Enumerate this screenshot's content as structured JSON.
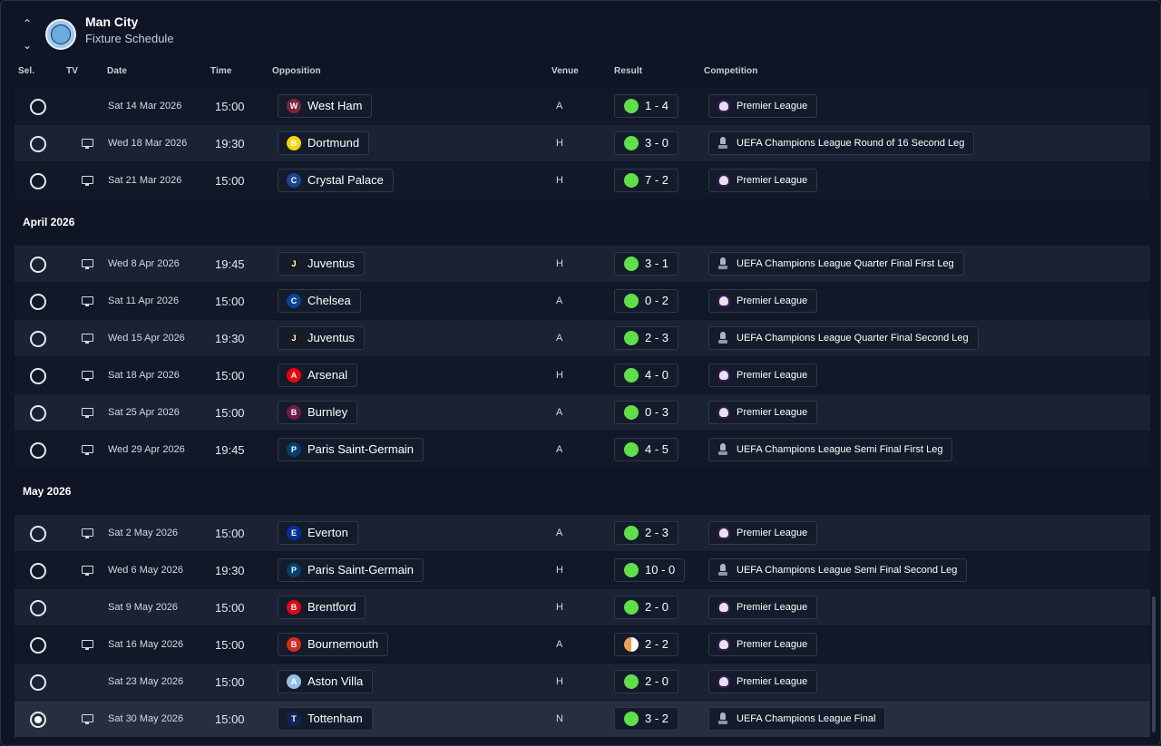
{
  "header": {
    "club_name": "Man City",
    "page_title": "Fixture Schedule",
    "club_color": "#6cabdd"
  },
  "columns": {
    "sel": "Sel.",
    "tv": "TV",
    "date": "Date",
    "time": "Time",
    "opposition": "Opposition",
    "venue": "Venue",
    "result": "Result",
    "competition": "Competition"
  },
  "months": [
    "April 2026",
    "May 2026"
  ],
  "rows": [
    {
      "date": "Sat 14 Mar 2026",
      "time": "15:00",
      "opp": "West Ham",
      "venue": "A",
      "result": "1 - 4",
      "comp": "Premier League",
      "tv": false,
      "outcome": "win",
      "comp_icon": "premier-league-icon",
      "badge_color": "#7a263a",
      "badge_text": "W"
    },
    {
      "date": "Wed 18 Mar 2026",
      "time": "19:30",
      "opp": "Dortmund",
      "venue": "H",
      "result": "3 - 0",
      "comp": "UEFA Champions League Round of 16  Second Leg",
      "tv": true,
      "outcome": "win",
      "comp_icon": "champions-league-trophy-icon",
      "badge_color": "#f5d50a",
      "badge_text": "B"
    },
    {
      "date": "Sat 21 Mar 2026",
      "time": "15:00",
      "opp": "Crystal Palace",
      "venue": "H",
      "result": "7 - 2",
      "comp": "Premier League",
      "tv": true,
      "outcome": "win",
      "comp_icon": "premier-league-icon",
      "badge_color": "#1b458f",
      "badge_text": "C"
    },
    {
      "date": "Wed 8 Apr 2026",
      "time": "19:45",
      "opp": "Juventus",
      "venue": "H",
      "result": "3 - 1",
      "comp": "UEFA Champions League Quarter Final First Leg",
      "tv": true,
      "outcome": "win",
      "comp_icon": "champions-league-trophy-icon",
      "badge_color": "#1c1c1c",
      "badge_text": "J"
    },
    {
      "date": "Sat 11 Apr 2026",
      "time": "15:00",
      "opp": "Chelsea",
      "venue": "A",
      "result": "0 - 2",
      "comp": "Premier League",
      "tv": true,
      "outcome": "win",
      "comp_icon": "premier-league-icon",
      "badge_color": "#034694",
      "badge_text": "C"
    },
    {
      "date": "Wed 15 Apr 2026",
      "time": "19:30",
      "opp": "Juventus",
      "venue": "A",
      "result": "2 - 3",
      "comp": "UEFA Champions League Quarter Final Second Leg",
      "tv": true,
      "outcome": "win",
      "comp_icon": "champions-league-trophy-icon",
      "badge_color": "#1c1c1c",
      "badge_text": "J"
    },
    {
      "date": "Sat 18 Apr 2026",
      "time": "15:00",
      "opp": "Arsenal",
      "venue": "H",
      "result": "4 - 0",
      "comp": "Premier League",
      "tv": true,
      "outcome": "win",
      "comp_icon": "premier-league-icon",
      "badge_color": "#ef0107",
      "badge_text": "A"
    },
    {
      "date": "Sat 25 Apr 2026",
      "time": "15:00",
      "opp": "Burnley",
      "venue": "A",
      "result": "0 - 3",
      "comp": "Premier League",
      "tv": true,
      "outcome": "win",
      "comp_icon": "premier-league-icon",
      "badge_color": "#6c1d45",
      "badge_text": "B"
    },
    {
      "date": "Wed 29 Apr 2026",
      "time": "19:45",
      "opp": "Paris Saint-Germain",
      "venue": "A",
      "result": "4 - 5",
      "comp": "UEFA Champions League Semi Final First Leg",
      "tv": true,
      "outcome": "win",
      "comp_icon": "champions-league-trophy-icon",
      "badge_color": "#004170",
      "badge_text": "P"
    },
    {
      "date": "Sat 2 May 2026",
      "time": "15:00",
      "opp": "Everton",
      "venue": "A",
      "result": "2 - 3",
      "comp": "Premier League",
      "tv": true,
      "outcome": "win",
      "comp_icon": "premier-league-icon",
      "badge_color": "#003399",
      "badge_text": "E"
    },
    {
      "date": "Wed 6 May 2026",
      "time": "19:30",
      "opp": "Paris Saint-Germain",
      "venue": "H",
      "result": "10 - 0",
      "comp": "UEFA Champions League Semi Final Second Leg",
      "tv": true,
      "outcome": "win",
      "comp_icon": "champions-league-trophy-icon",
      "badge_color": "#004170",
      "badge_text": "P"
    },
    {
      "date": "Sat 9 May 2026",
      "time": "15:00",
      "opp": "Brentford",
      "venue": "H",
      "result": "2 - 0",
      "comp": "Premier League",
      "tv": false,
      "outcome": "win",
      "comp_icon": "premier-league-icon",
      "badge_color": "#e30613",
      "badge_text": "B"
    },
    {
      "date": "Sat 16 May 2026",
      "time": "15:00",
      "opp": "Bournemouth",
      "venue": "A",
      "result": "2 - 2",
      "comp": "Premier League",
      "tv": true,
      "outcome": "draw",
      "comp_icon": "premier-league-icon",
      "badge_color": "#da291c",
      "badge_text": "B"
    },
    {
      "date": "Sat 23 May 2026",
      "time": "15:00",
      "opp": "Aston Villa",
      "venue": "H",
      "result": "2 - 0",
      "comp": "Premier League",
      "tv": false,
      "outcome": "win",
      "comp_icon": "premier-league-icon",
      "badge_color": "#95bfe5",
      "badge_text": "A"
    },
    {
      "date": "Sat 30 May 2026",
      "time": "15:00",
      "opp": "Tottenham",
      "venue": "N",
      "result": "3 - 2",
      "comp": "UEFA Champions League Final",
      "tv": true,
      "outcome": "win",
      "comp_icon": "champions-league-trophy-icon",
      "badge_color": "#132257",
      "badge_text": "T",
      "selected": true
    }
  ]
}
